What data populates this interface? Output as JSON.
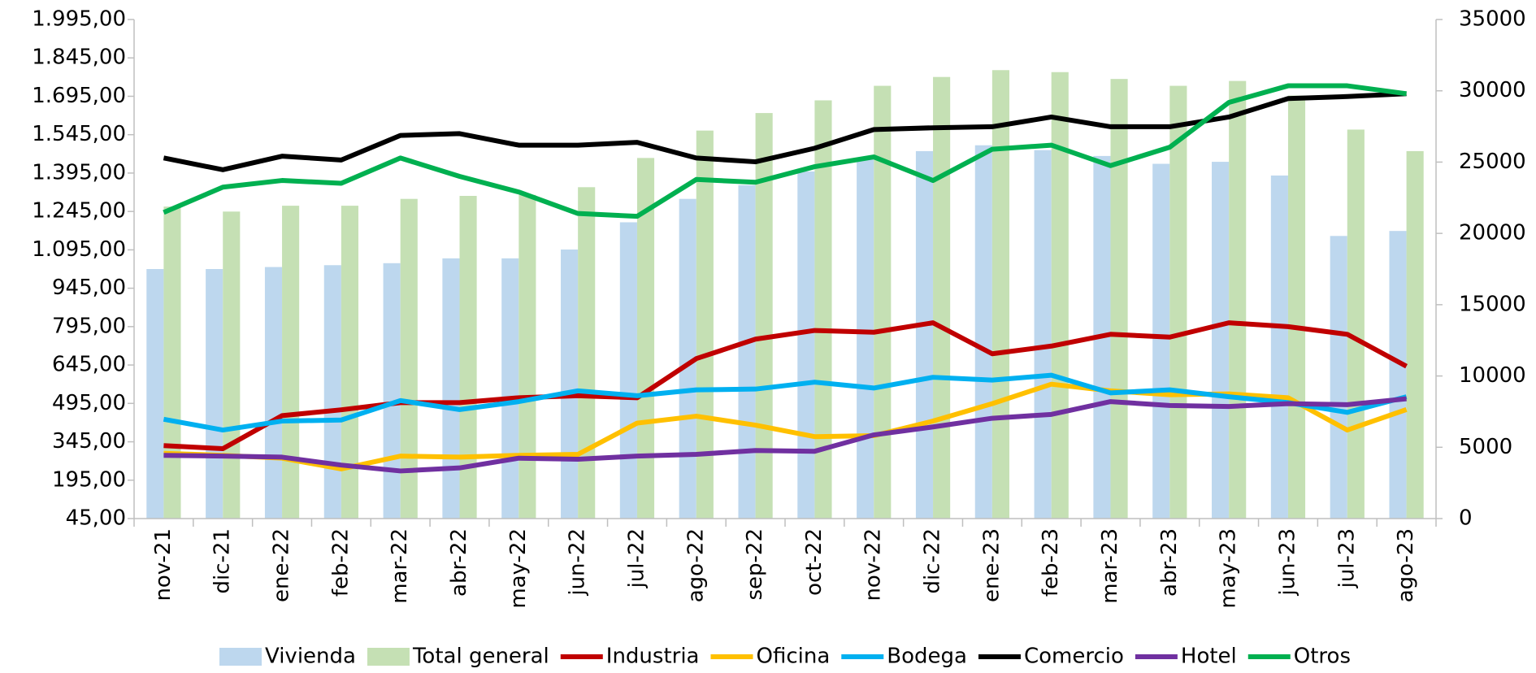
{
  "chart_data": {
    "type": "bar-line",
    "categories": [
      "nov-21",
      "dic-21",
      "ene-22",
      "feb-22",
      "mar-22",
      "abr-22",
      "may-22",
      "jun-22",
      "jul-22",
      "ago-22",
      "sep-22",
      "oct-22",
      "nov-22",
      "dic-22",
      "ene-23",
      "feb-23",
      "mar-23",
      "abr-23",
      "may-23",
      "jun-23",
      "jul-23",
      "ago-23"
    ],
    "ylim": [
      45,
      1995
    ],
    "yticks": [
      {
        "value": 45,
        "label": "45,00"
      },
      {
        "value": 195,
        "label": "195,00"
      },
      {
        "value": 345,
        "label": "345,00"
      },
      {
        "value": 495,
        "label": "495,00"
      },
      {
        "value": 645,
        "label": "645,00"
      },
      {
        "value": 795,
        "label": "795,00"
      },
      {
        "value": 945,
        "label": "945,00"
      },
      {
        "value": 1095,
        "label": "1.095,00"
      },
      {
        "value": 1245,
        "label": "1.245,00"
      },
      {
        "value": 1395,
        "label": "1.395,00"
      },
      {
        "value": 1545,
        "label": "1.545,00"
      },
      {
        "value": 1695,
        "label": "1.695,00"
      },
      {
        "value": 1845,
        "label": "1.845,00"
      },
      {
        "value": 1995,
        "label": "1.995,00"
      }
    ],
    "y2lim": [
      0,
      35000
    ],
    "y2ticks": [
      0,
      5000,
      10000,
      15000,
      20000,
      25000,
      30000,
      35000
    ],
    "legend": "bottom",
    "series": [
      {
        "name": "Vivienda",
        "type": "bar",
        "axis": "y2",
        "color": "#bdd7ee",
        "values": [
          17500,
          17500,
          17640,
          17770,
          17910,
          18250,
          18250,
          18870,
          20780,
          22420,
          23380,
          24340,
          25290,
          25770,
          26180,
          25840,
          25430,
          24880,
          25020,
          24060,
          19820,
          20170
        ]
      },
      {
        "name": "Total general",
        "type": "bar",
        "axis": "y2",
        "color": "#c5e0b4",
        "values": [
          21880,
          21530,
          21940,
          21940,
          22420,
          22630,
          22700,
          23240,
          25290,
          27210,
          28440,
          29330,
          30350,
          30970,
          31450,
          31310,
          30830,
          30350,
          30690,
          29670,
          27280,
          25770
        ]
      },
      {
        "name": "Industria",
        "type": "line",
        "color": "#c00000",
        "values": [
          330,
          318,
          447,
          470,
          498,
          498,
          517,
          525,
          517,
          670,
          746,
          780,
          773,
          810,
          689,
          719,
          765,
          754,
          810,
          795,
          765,
          640
        ]
      },
      {
        "name": "Oficina",
        "type": "line",
        "color": "#ffc000",
        "values": [
          300,
          292,
          281,
          239,
          289,
          285,
          292,
          296,
          418,
          445,
          410,
          365,
          369,
          426,
          494,
          570,
          544,
          529,
          532,
          517,
          391,
          471
        ]
      },
      {
        "name": "Bodega",
        "type": "line",
        "color": "#00b0f0",
        "values": [
          433,
          391,
          426,
          430,
          506,
          471,
          502,
          544,
          525,
          548,
          551,
          578,
          555,
          597,
          586,
          605,
          536,
          548,
          521,
          498,
          460,
          521
        ]
      },
      {
        "name": "Comercio",
        "type": "line",
        "color": "#000000",
        "values": [
          1454,
          1408,
          1461,
          1446,
          1542,
          1549,
          1504,
          1504,
          1515,
          1454,
          1439,
          1492,
          1565,
          1572,
          1576,
          1614,
          1576,
          1576,
          1614,
          1686,
          1694,
          1705
        ]
      },
      {
        "name": "Hotel",
        "type": "line",
        "color": "#7030a0",
        "values": [
          292,
          289,
          285,
          254,
          231,
          243,
          281,
          277,
          289,
          296,
          311,
          308,
          372,
          403,
          437,
          452,
          502,
          487,
          483,
          494,
          490,
          513
        ]
      },
      {
        "name": "Otros",
        "type": "line",
        "color": "#00b050",
        "values": [
          1241,
          1340,
          1366,
          1355,
          1454,
          1382,
          1321,
          1237,
          1226,
          1370,
          1359,
          1420,
          1458,
          1366,
          1488,
          1504,
          1424,
          1496,
          1671,
          1736,
          1736,
          1705
        ]
      }
    ]
  }
}
